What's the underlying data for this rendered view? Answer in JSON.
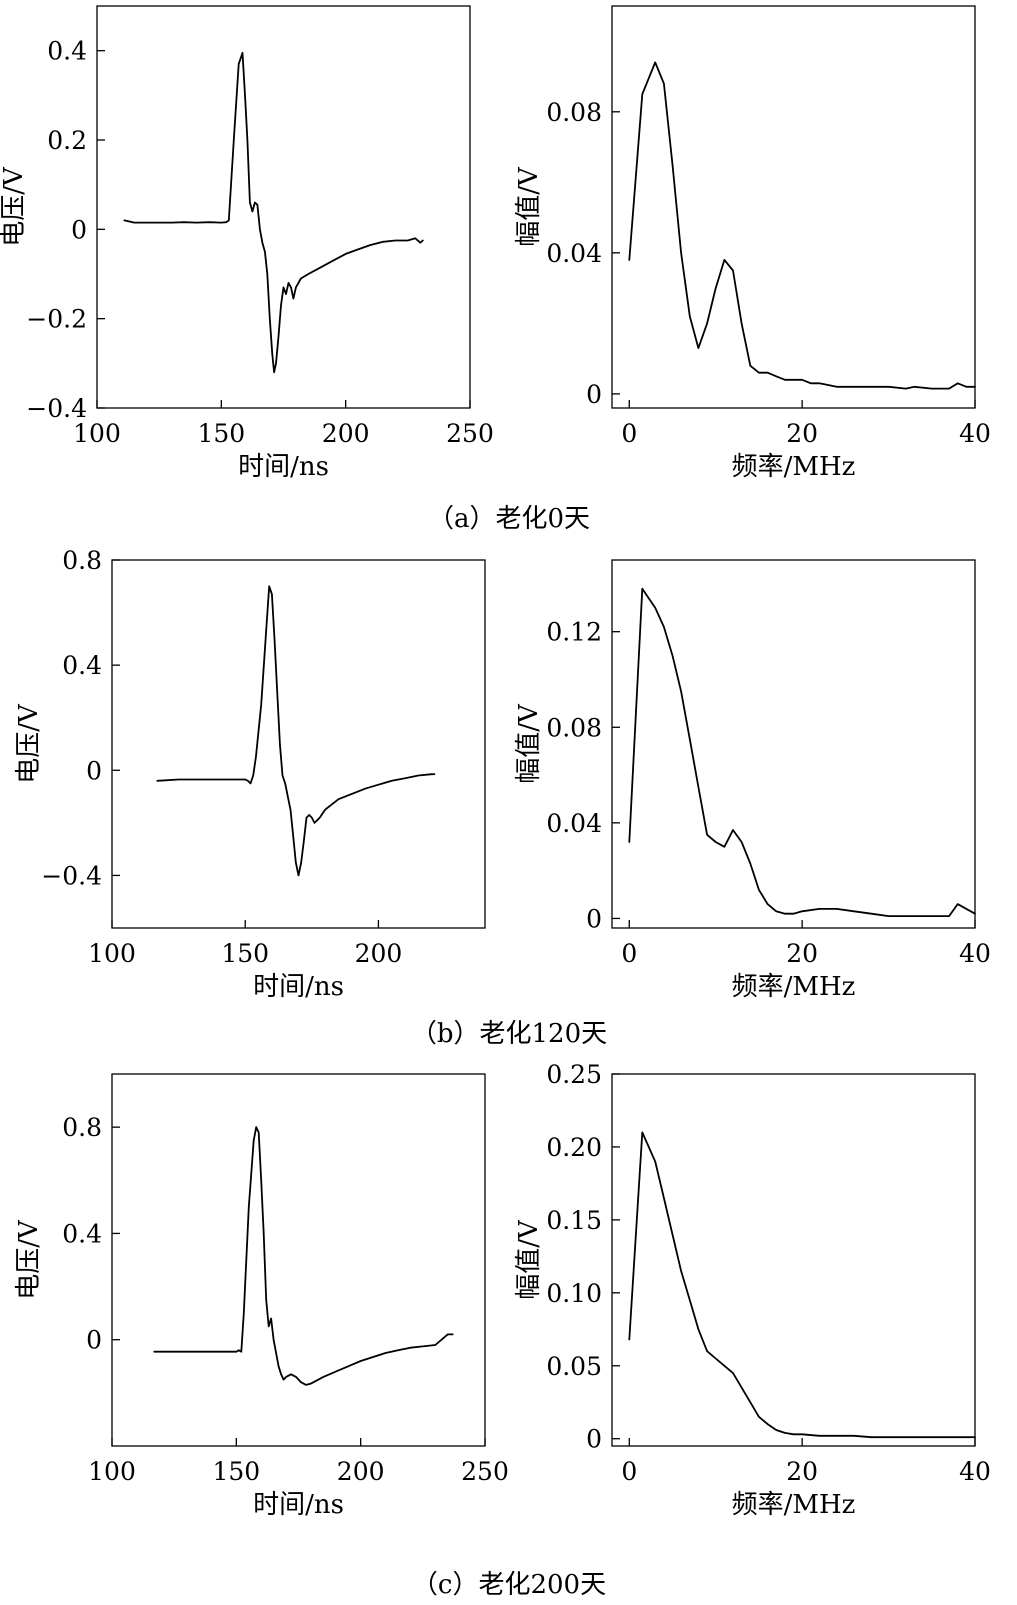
{
  "chart_data": [
    {
      "type": "line",
      "panel": "a",
      "xlabel": "时间/ns",
      "ylabel": "电压/V",
      "xlim": [
        100,
        250
      ],
      "ylim": [
        -0.4,
        0.5
      ],
      "xticks": [
        100,
        150,
        200,
        250
      ],
      "xtick_labels": [
        "100",
        "150",
        "200",
        "250"
      ],
      "yticks": [
        -0.4,
        -0.2,
        0,
        0.2,
        0.4
      ],
      "ytick_labels": [
        "−0.4",
        "−0.2",
        "0",
        "0.2",
        "0.4"
      ],
      "series": [
        {
          "x": [
            111,
            115,
            120,
            125,
            130,
            135,
            140,
            145,
            150,
            152,
            153,
            155,
            157,
            158.5,
            159.5,
            160.5,
            161.5,
            162.5,
            163.5,
            164.5,
            165.5,
            166.5,
            167.5,
            168.5,
            169.5,
            170.5,
            171.2,
            172,
            173,
            174,
            175,
            176,
            177,
            178,
            179,
            180,
            182,
            185,
            190,
            195,
            200,
            205,
            210,
            215,
            220,
            225,
            228,
            230,
            231
          ],
          "y": [
            0.02,
            0.015,
            0.015,
            0.015,
            0.015,
            0.016,
            0.015,
            0.016,
            0.015,
            0.016,
            0.02,
            0.2,
            0.37,
            0.395,
            0.3,
            0.2,
            0.06,
            0.04,
            0.06,
            0.055,
            0.0,
            -0.03,
            -0.05,
            -0.1,
            -0.2,
            -0.28,
            -0.32,
            -0.3,
            -0.24,
            -0.17,
            -0.13,
            -0.145,
            -0.12,
            -0.13,
            -0.155,
            -0.13,
            -0.11,
            -0.1,
            -0.085,
            -0.07,
            -0.055,
            -0.045,
            -0.035,
            -0.028,
            -0.025,
            -0.025,
            -0.02,
            -0.03,
            -0.025
          ]
        }
      ]
    },
    {
      "type": "line",
      "panel": "a",
      "xlabel": "频率/MHz",
      "ylabel": "幅值/V",
      "xlim": [
        -2,
        40
      ],
      "ylim": [
        -0.004,
        0.11
      ],
      "xticks": [
        0,
        20,
        40
      ],
      "xtick_labels": [
        "0",
        "20",
        "40"
      ],
      "yticks": [
        0,
        0.04,
        0.08
      ],
      "ytick_labels": [
        "0",
        "0.04",
        "0.08"
      ],
      "series": [
        {
          "x": [
            0,
            1.5,
            3,
            4,
            5,
            6,
            7,
            8,
            9,
            10,
            11,
            12,
            13,
            14,
            15,
            16,
            17,
            18,
            19,
            20,
            21,
            22,
            24,
            26,
            28,
            30,
            32,
            33,
            35,
            37,
            38,
            39,
            40
          ],
          "y": [
            0.038,
            0.085,
            0.094,
            0.088,
            0.065,
            0.04,
            0.022,
            0.013,
            0.02,
            0.03,
            0.038,
            0.035,
            0.02,
            0.008,
            0.006,
            0.006,
            0.005,
            0.004,
            0.004,
            0.004,
            0.003,
            0.003,
            0.002,
            0.002,
            0.002,
            0.002,
            0.0015,
            0.002,
            0.0015,
            0.0015,
            0.003,
            0.002,
            0.002
          ]
        }
      ]
    },
    {
      "type": "line",
      "panel": "b",
      "xlabel": "时间/ns",
      "ylabel": "电压/V",
      "xlim": [
        100,
        240
      ],
      "ylim": [
        -0.6,
        0.8
      ],
      "xticks": [
        100,
        150,
        200
      ],
      "xtick_labels": [
        "100",
        "150",
        "200"
      ],
      "yticks": [
        -0.4,
        0,
        0.4,
        0.8
      ],
      "ytick_labels": [
        "−0.4",
        "0",
        "0.4",
        "0.8"
      ],
      "series": [
        {
          "x": [
            117,
            125,
            135,
            145,
            150,
            151,
            152,
            153,
            154,
            156,
            158,
            159,
            160,
            161,
            162,
            163,
            164,
            165,
            166,
            167,
            168,
            169,
            170,
            171,
            172,
            173,
            174,
            175,
            176,
            178,
            180,
            185,
            190,
            195,
            200,
            205,
            210,
            215,
            220,
            221
          ],
          "y": [
            -0.04,
            -0.035,
            -0.035,
            -0.035,
            -0.035,
            -0.04,
            -0.05,
            -0.02,
            0.05,
            0.25,
            0.55,
            0.7,
            0.67,
            0.5,
            0.3,
            0.1,
            -0.02,
            -0.05,
            -0.1,
            -0.15,
            -0.25,
            -0.35,
            -0.4,
            -0.35,
            -0.27,
            -0.18,
            -0.17,
            -0.18,
            -0.2,
            -0.18,
            -0.15,
            -0.11,
            -0.09,
            -0.07,
            -0.055,
            -0.04,
            -0.03,
            -0.02,
            -0.015,
            -0.015
          ]
        }
      ]
    },
    {
      "type": "line",
      "panel": "b",
      "xlabel": "频率/MHz",
      "ylabel": "幅值/V",
      "xlim": [
        -2,
        40
      ],
      "ylim": [
        -0.004,
        0.15
      ],
      "xticks": [
        0,
        20,
        40
      ],
      "xtick_labels": [
        "0",
        "20",
        "40"
      ],
      "yticks": [
        0,
        0.04,
        0.08,
        0.12
      ],
      "ytick_labels": [
        "0",
        "0.04",
        "0.08",
        "0.12"
      ],
      "series": [
        {
          "x": [
            0,
            1.5,
            3,
            4,
            5,
            6,
            7,
            8,
            9,
            10,
            11,
            12,
            13,
            14,
            15,
            16,
            17,
            18,
            19,
            20,
            22,
            24,
            26,
            28,
            30,
            32,
            34,
            36,
            37,
            38,
            39,
            40
          ],
          "y": [
            0.032,
            0.138,
            0.13,
            0.122,
            0.11,
            0.095,
            0.075,
            0.055,
            0.035,
            0.032,
            0.03,
            0.037,
            0.032,
            0.023,
            0.012,
            0.006,
            0.003,
            0.002,
            0.002,
            0.003,
            0.004,
            0.004,
            0.003,
            0.002,
            0.001,
            0.001,
            0.001,
            0.001,
            0.001,
            0.006,
            0.004,
            0.002
          ]
        }
      ]
    },
    {
      "type": "line",
      "panel": "c",
      "xlabel": "时间/ns",
      "ylabel": "电压/V",
      "xlim": [
        100,
        250
      ],
      "ylim": [
        -0.4,
        1.0
      ],
      "xticks": [
        100,
        150,
        200,
        250
      ],
      "xtick_labels": [
        "100",
        "150",
        "200",
        "250"
      ],
      "yticks": [
        0,
        0.4,
        0.8
      ],
      "ytick_labels": [
        "0",
        "0.4",
        "0.8"
      ],
      "series": [
        {
          "x": [
            117,
            125,
            135,
            145,
            150,
            151,
            152,
            153,
            155,
            157,
            158,
            159,
            160,
            161,
            162,
            163,
            164,
            165,
            166,
            167,
            168,
            169,
            170,
            172,
            174,
            176,
            178,
            180,
            185,
            190,
            195,
            200,
            205,
            210,
            215,
            220,
            225,
            230,
            235,
            237
          ],
          "y": [
            -0.045,
            -0.045,
            -0.045,
            -0.045,
            -0.045,
            -0.04,
            -0.045,
            0.1,
            0.5,
            0.75,
            0.8,
            0.78,
            0.6,
            0.4,
            0.15,
            0.05,
            0.08,
            0.0,
            -0.05,
            -0.1,
            -0.13,
            -0.15,
            -0.14,
            -0.13,
            -0.14,
            -0.16,
            -0.17,
            -0.165,
            -0.14,
            -0.12,
            -0.1,
            -0.08,
            -0.065,
            -0.05,
            -0.04,
            -0.03,
            -0.025,
            -0.02,
            0.02,
            0.02
          ]
        }
      ]
    },
    {
      "type": "line",
      "panel": "c",
      "xlabel": "频率/MHz",
      "ylabel": "幅值/V",
      "xlim": [
        -2,
        40
      ],
      "ylim": [
        -0.005,
        0.25
      ],
      "xticks": [
        0,
        20,
        40
      ],
      "xtick_labels": [
        "0",
        "20",
        "40"
      ],
      "yticks": [
        0,
        0.05,
        0.1,
        0.15,
        0.2,
        0.25
      ],
      "ytick_labels": [
        "0",
        "0.05",
        "0.10",
        "0.15",
        "0.20",
        "0.25"
      ],
      "series": [
        {
          "x": [
            0,
            1.5,
            3,
            4,
            5,
            6,
            7,
            8,
            9,
            10,
            11,
            12,
            13,
            14,
            15,
            16,
            17,
            18,
            19,
            20,
            22,
            24,
            26,
            28,
            30,
            32,
            34,
            36,
            38,
            40
          ],
          "y": [
            0.068,
            0.21,
            0.19,
            0.165,
            0.14,
            0.115,
            0.095,
            0.075,
            0.06,
            0.055,
            0.05,
            0.045,
            0.035,
            0.025,
            0.015,
            0.01,
            0.006,
            0.004,
            0.003,
            0.003,
            0.002,
            0.002,
            0.002,
            0.001,
            0.001,
            0.001,
            0.001,
            0.001,
            0.001,
            0.001
          ]
        }
      ]
    }
  ],
  "captions": [
    "（a）老化0天",
    "（b）老化120天",
    "（c）老化200天"
  ]
}
